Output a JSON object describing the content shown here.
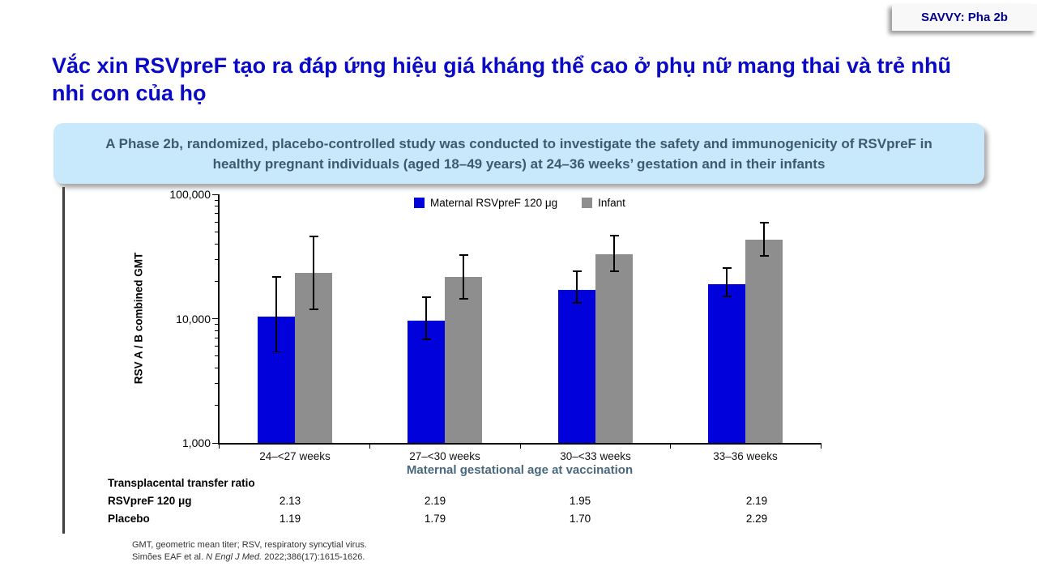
{
  "badge": {
    "label": "SAVVY: Pha 2b"
  },
  "title": "Vắc xin RSVpreF tạo ra đáp ứng hiệu giá kháng thể cao ở phụ nữ mang thai và trẻ nhũ nhi con của họ",
  "info_box": "A Phase 2b, randomized, placebo-controlled study was conducted to investigate the safety and immunogenicity of RSVpreF in healthy pregnant individuals (aged 18–49 years) at 24–36 weeks’ gestation and in their infants",
  "chart_data": {
    "type": "bar",
    "y_scale": "log10",
    "title": "",
    "ylabel": "RSV A / B combined GMT",
    "xlabel": "Maternal gestational age at vaccination",
    "ylim": [
      1000,
      100000
    ],
    "grid": false,
    "legend_position": "top-center",
    "y_ticks": [
      {
        "value": 1000,
        "label": "1,000"
      },
      {
        "value": 10000,
        "label": "10,000"
      },
      {
        "value": 100000,
        "label": "100,000"
      }
    ],
    "categories": [
      "24–<27 weeks",
      "27–<30 weeks",
      "30–<33 weeks",
      "33–36 weeks"
    ],
    "series": [
      {
        "name": "Maternal RSVpreF 120 μg",
        "color": "#0101dc",
        "values": [
          10400,
          9600,
          17100,
          18900
        ],
        "ci_low": [
          5400,
          6800,
          13400,
          15100
        ],
        "ci_high": [
          21600,
          14900,
          24100,
          25500
        ]
      },
      {
        "name": "Infant",
        "color": "#8e8e8e",
        "values": [
          23300,
          21500,
          32900,
          43000
        ],
        "ci_low": [
          11900,
          14400,
          24000,
          32000
        ],
        "ci_high": [
          45800,
          32500,
          46500,
          59000
        ]
      }
    ]
  },
  "table": {
    "header": "Transplacental transfer ratio",
    "rows": [
      {
        "label": "RSVpreF 120 μg",
        "values": [
          "2.13",
          "2.19",
          "1.95",
          "2.19"
        ]
      },
      {
        "label": "Placebo",
        "values": [
          "1.19",
          "1.79",
          "1.70",
          "2.29"
        ]
      }
    ]
  },
  "footnote": {
    "line1": "GMT, geometric mean titer; RSV, respiratory syncytial virus.",
    "line2_pre": "Simões EAF et al. ",
    "line2_journal": "N Engl J Med.",
    "line2_post": " 2022;386(17):1615-1626."
  },
  "colors": {
    "title_blue": "#0a0ac6",
    "badge_text": "#00008b",
    "info_box_bg": "#c8e9fb",
    "info_box_text": "#3d5a6e",
    "maternal_bar": "#0101dc",
    "infant_bar": "#8e8e8e",
    "x_axis_title": "#47687e"
  }
}
